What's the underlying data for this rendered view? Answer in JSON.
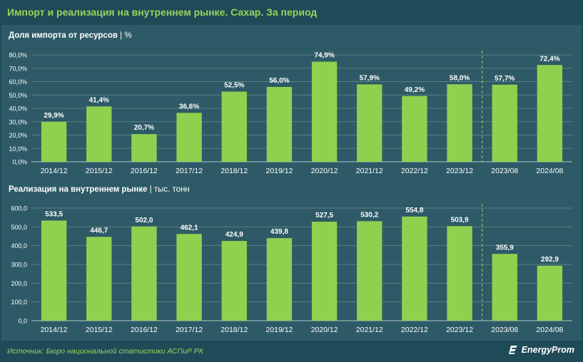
{
  "title": "Импорт и реализация на внутреннем рынке. Сахар. За период",
  "charts": [
    {
      "subtitle_bold": "Доля импорта от ресурсов",
      "subtitle_sep": " | ",
      "subtitle_unit": "%"
    },
    {
      "subtitle_bold": "Реализация на внутреннем рынке",
      "subtitle_sep": " | ",
      "subtitle_unit": "тыс. тонн"
    }
  ],
  "footer": "Источник: Бюро национальной статистики АСПиР РК",
  "logo_text": "EnergyProm",
  "colors": {
    "background": "#1f4a57",
    "panel": "#2d5a66",
    "bar": "#8fd14f",
    "title": "#9ad35a",
    "divider": "#9ad35a"
  },
  "chart_data": [
    {
      "type": "bar",
      "categories": [
        "2014/12",
        "2015/12",
        "2016/12",
        "2017/12",
        "2018/12",
        "2019/12",
        "2020/12",
        "2021/12",
        "2022/12",
        "2023/12",
        "2023/08",
        "2024/08"
      ],
      "values": [
        29.9,
        41.4,
        20.7,
        36.6,
        52.5,
        56.0,
        74.9,
        57.9,
        49.2,
        58.0,
        57.7,
        72.4
      ],
      "value_labels": [
        "29,9%",
        "41,4%",
        "20,7%",
        "36,6%",
        "52,5%",
        "56,0%",
        "74,9%",
        "57,9%",
        "49,2%",
        "58,0%",
        "57,7%",
        "72,4%"
      ],
      "title": "Доля импорта от ресурсов",
      "ylabel": "%",
      "ylim": [
        0,
        80
      ],
      "yticks": [
        0,
        10,
        20,
        30,
        40,
        50,
        60,
        70,
        80
      ],
      "ytick_labels": [
        "0,0%",
        "10,0%",
        "20,0%",
        "30,0%",
        "40,0%",
        "50,0%",
        "60,0%",
        "70,0%",
        "80,0%"
      ],
      "grid": true,
      "divider_after_index": 9
    },
    {
      "type": "bar",
      "categories": [
        "2014/12",
        "2015/12",
        "2016/12",
        "2017/12",
        "2018/12",
        "2019/12",
        "2020/12",
        "2021/12",
        "2022/12",
        "2023/12",
        "2023/08",
        "2024/08"
      ],
      "values": [
        533.5,
        446.7,
        502.0,
        462.1,
        424.9,
        439.8,
        527.5,
        530.2,
        554.8,
        503.9,
        355.9,
        292.9
      ],
      "value_labels": [
        "533,5",
        "446,7",
        "502,0",
        "462,1",
        "424,9",
        "439,8",
        "527,5",
        "530,2",
        "554,8",
        "503,9",
        "355,9",
        "292,9"
      ],
      "title": "Реализация на внутреннем рынке",
      "ylabel": "тыс. тонн",
      "ylim": [
        0,
        600
      ],
      "yticks": [
        0,
        100,
        200,
        300,
        400,
        500,
        600
      ],
      "ytick_labels": [
        "0,0",
        "100,0",
        "200,0",
        "300,0",
        "400,0",
        "500,0",
        "600,0"
      ],
      "grid": true,
      "divider_after_index": 9
    }
  ]
}
